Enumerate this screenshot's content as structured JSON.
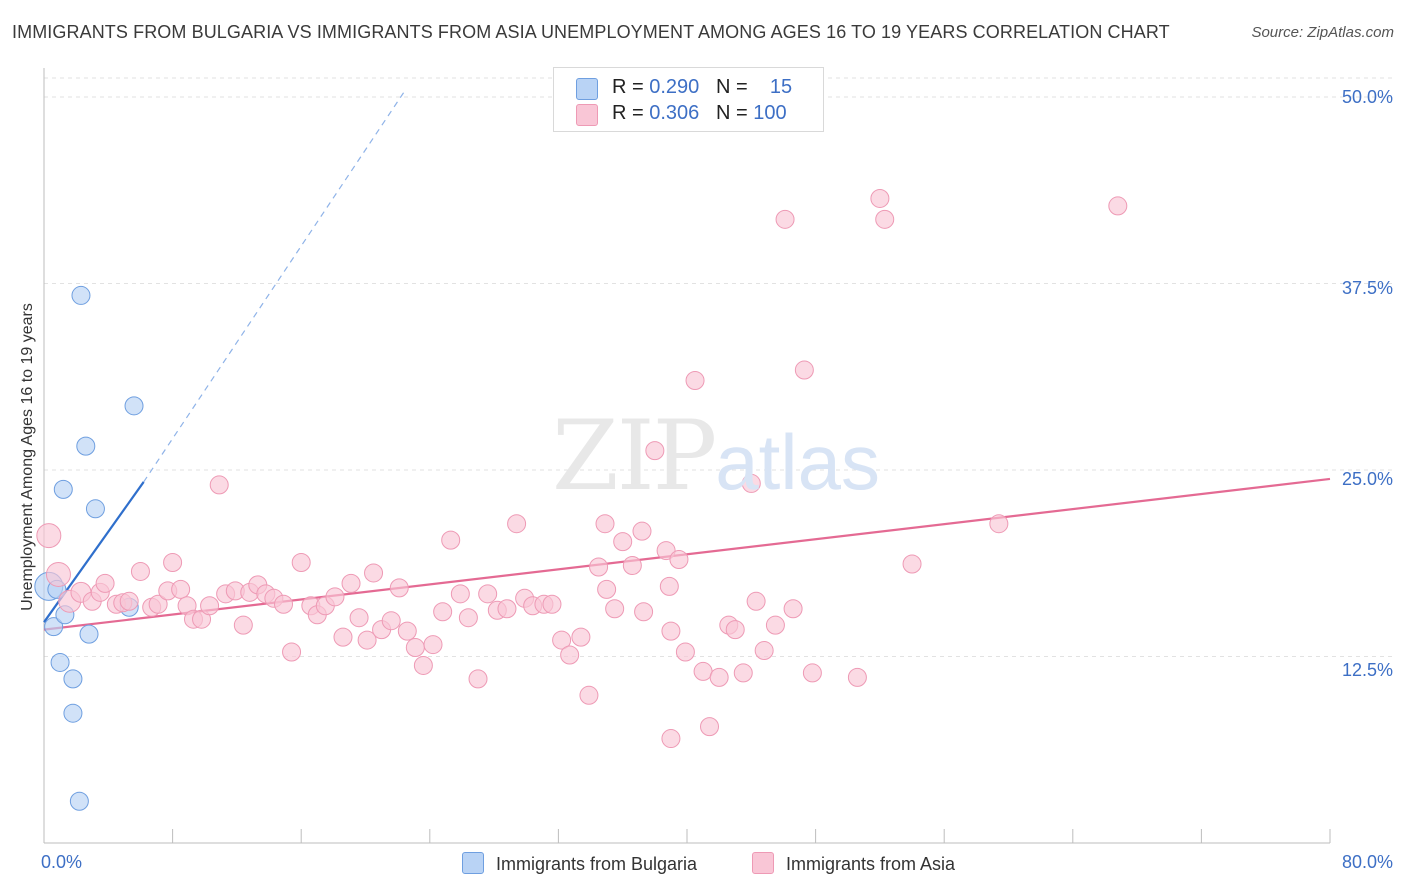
{
  "title": "IMMIGRANTS FROM BULGARIA VS IMMIGRANTS FROM ASIA UNEMPLOYMENT AMONG AGES 16 TO 19 YEARS CORRELATION CHART",
  "source": "Source: ZipAtlas.com",
  "watermark": {
    "zip": "ZIP",
    "atlas": "atlas"
  },
  "legend": {
    "rows": [
      {
        "r_label": "R = ",
        "r_value": "0.290",
        "n_label": "N = ",
        "n_value": "15",
        "color": "#b9d3f5"
      },
      {
        "r_label": "R = ",
        "r_value": "0.306",
        "n_label": "N = ",
        "n_value": "100",
        "color": "#f9c6d6"
      }
    ]
  },
  "bottom_legend": {
    "series1": "Immigrants from Bulgaria",
    "series2": "Immigrants from Asia"
  },
  "chart_data": {
    "type": "scatter",
    "xlabel": "",
    "ylabel": "Unemployment Among Ages 16 to 19 years",
    "xlim": [
      0,
      80
    ],
    "ylim": [
      0,
      52
    ],
    "x_tick_labels": [
      "0.0%",
      "80.0%"
    ],
    "y_tick_labels": [
      "12.5%",
      "25.0%",
      "37.5%",
      "50.0%"
    ],
    "y_ticks": [
      12.5,
      25.0,
      37.5,
      50.0
    ],
    "series": [
      {
        "name": "Immigrants from Bulgaria",
        "color": "#6f9fe0",
        "fill": "#b9d3f5",
        "R": 0.29,
        "N": 15,
        "trend": {
          "x0": 0.0,
          "y0": 14.8,
          "x1": 6.2,
          "y1": 24.2,
          "dash_to_x": 22.5,
          "dash_to_y": 50.5,
          "color": "#2f6fcc"
        },
        "points": [
          [
            0.3,
            17.2,
            14
          ],
          [
            0.6,
            14.5,
            9
          ],
          [
            1.0,
            12.1,
            9
          ],
          [
            1.3,
            15.3,
            9
          ],
          [
            1.8,
            11.0,
            9
          ],
          [
            1.8,
            8.7,
            9
          ],
          [
            2.2,
            2.8,
            9
          ],
          [
            2.3,
            36.7,
            9
          ],
          [
            2.6,
            26.6,
            9
          ],
          [
            2.8,
            14.0,
            9
          ],
          [
            3.2,
            22.4,
            9
          ],
          [
            1.2,
            23.7,
            9
          ],
          [
            5.6,
            29.3,
            9
          ],
          [
            5.3,
            15.8,
            9
          ],
          [
            0.8,
            17.0,
            9
          ]
        ]
      },
      {
        "name": "Immigrants from Asia",
        "color": "#ee9ab5",
        "fill": "#f9c6d6",
        "R": 0.306,
        "N": 100,
        "trend": {
          "x0": 0.0,
          "y0": 14.3,
          "x1": 80.0,
          "y1": 24.4,
          "color": "#e46a93"
        },
        "points": [
          [
            0.3,
            20.6,
            12
          ],
          [
            0.9,
            18.0,
            12
          ],
          [
            1.6,
            16.2,
            11
          ],
          [
            2.3,
            16.8,
            10
          ],
          [
            3.0,
            16.2,
            9
          ],
          [
            3.5,
            16.8,
            9
          ],
          [
            3.8,
            17.4,
            9
          ],
          [
            4.5,
            16.0,
            9
          ],
          [
            4.9,
            16.1,
            9
          ],
          [
            5.3,
            16.2,
            9
          ],
          [
            6.0,
            18.2,
            9
          ],
          [
            6.7,
            15.8,
            9
          ],
          [
            7.1,
            16.0,
            9
          ],
          [
            7.7,
            16.9,
            9
          ],
          [
            8.0,
            18.8,
            9
          ],
          [
            8.5,
            17.0,
            9
          ],
          [
            8.9,
            15.9,
            9
          ],
          [
            9.3,
            15.0,
            9
          ],
          [
            9.8,
            15.0,
            9
          ],
          [
            10.3,
            15.9,
            9
          ],
          [
            10.9,
            24.0,
            9
          ],
          [
            11.3,
            16.7,
            9
          ],
          [
            11.9,
            16.9,
            9
          ],
          [
            12.4,
            14.6,
            9
          ],
          [
            12.8,
            16.8,
            9
          ],
          [
            13.3,
            17.3,
            9
          ],
          [
            13.8,
            16.7,
            9
          ],
          [
            14.3,
            16.4,
            9
          ],
          [
            14.9,
            16.0,
            9
          ],
          [
            15.4,
            12.8,
            9
          ],
          [
            16.0,
            18.8,
            9
          ],
          [
            16.6,
            15.9,
            9
          ],
          [
            17.0,
            15.3,
            9
          ],
          [
            17.5,
            15.9,
            9
          ],
          [
            18.1,
            16.5,
            9
          ],
          [
            18.6,
            13.8,
            9
          ],
          [
            19.1,
            17.4,
            9
          ],
          [
            19.6,
            15.1,
            9
          ],
          [
            20.1,
            13.6,
            9
          ],
          [
            20.5,
            18.1,
            9
          ],
          [
            21.0,
            14.3,
            9
          ],
          [
            21.6,
            14.9,
            9
          ],
          [
            22.1,
            17.1,
            9
          ],
          [
            22.6,
            14.2,
            9
          ],
          [
            23.1,
            13.1,
            9
          ],
          [
            23.6,
            11.9,
            9
          ],
          [
            24.2,
            13.3,
            9
          ],
          [
            24.8,
            15.5,
            9
          ],
          [
            25.3,
            20.3,
            9
          ],
          [
            25.9,
            16.7,
            9
          ],
          [
            26.4,
            15.1,
            9
          ],
          [
            27.0,
            11.0,
            9
          ],
          [
            27.6,
            16.7,
            9
          ],
          [
            28.2,
            15.6,
            9
          ],
          [
            28.8,
            15.7,
            9
          ],
          [
            29.4,
            21.4,
            9
          ],
          [
            29.9,
            16.4,
            9
          ],
          [
            30.4,
            15.9,
            9
          ],
          [
            31.1,
            16.0,
            9
          ],
          [
            31.6,
            16.0,
            9
          ],
          [
            32.2,
            13.6,
            9
          ],
          [
            32.7,
            12.6,
            9
          ],
          [
            33.4,
            13.8,
            9
          ],
          [
            33.9,
            9.9,
            9
          ],
          [
            34.5,
            18.5,
            9
          ],
          [
            34.9,
            21.4,
            9
          ],
          [
            35.5,
            15.7,
            9
          ],
          [
            36.0,
            20.2,
            9
          ],
          [
            36.6,
            18.6,
            9
          ],
          [
            37.2,
            20.9,
            9
          ],
          [
            37.3,
            15.5,
            9
          ],
          [
            38.0,
            26.3,
            9
          ],
          [
            38.7,
            19.6,
            9
          ],
          [
            38.9,
            17.2,
            9
          ],
          [
            39.5,
            19.0,
            9
          ],
          [
            39.0,
            7.0,
            9
          ],
          [
            39.9,
            12.8,
            9
          ],
          [
            40.5,
            31.0,
            9
          ],
          [
            41.0,
            11.5,
            9
          ],
          [
            41.4,
            7.8,
            9
          ],
          [
            42.0,
            11.1,
            9
          ],
          [
            42.6,
            14.6,
            9
          ],
          [
            43.0,
            14.3,
            9
          ],
          [
            43.5,
            11.4,
            9
          ],
          [
            44.0,
            24.1,
            9
          ],
          [
            44.3,
            16.2,
            9
          ],
          [
            44.8,
            12.9,
            9
          ],
          [
            45.5,
            14.6,
            9
          ],
          [
            46.1,
            41.8,
            9
          ],
          [
            46.6,
            15.7,
            9
          ],
          [
            47.3,
            31.7,
            9
          ],
          [
            47.8,
            11.4,
            9
          ],
          [
            50.6,
            11.1,
            9
          ],
          [
            52.0,
            43.2,
            9
          ],
          [
            52.3,
            41.8,
            9
          ],
          [
            54.0,
            18.7,
            9
          ],
          [
            59.4,
            21.4,
            9
          ],
          [
            66.8,
            42.7,
            9
          ],
          [
            39.0,
            14.2,
            9
          ],
          [
            35.0,
            17.0,
            9
          ]
        ]
      }
    ]
  }
}
